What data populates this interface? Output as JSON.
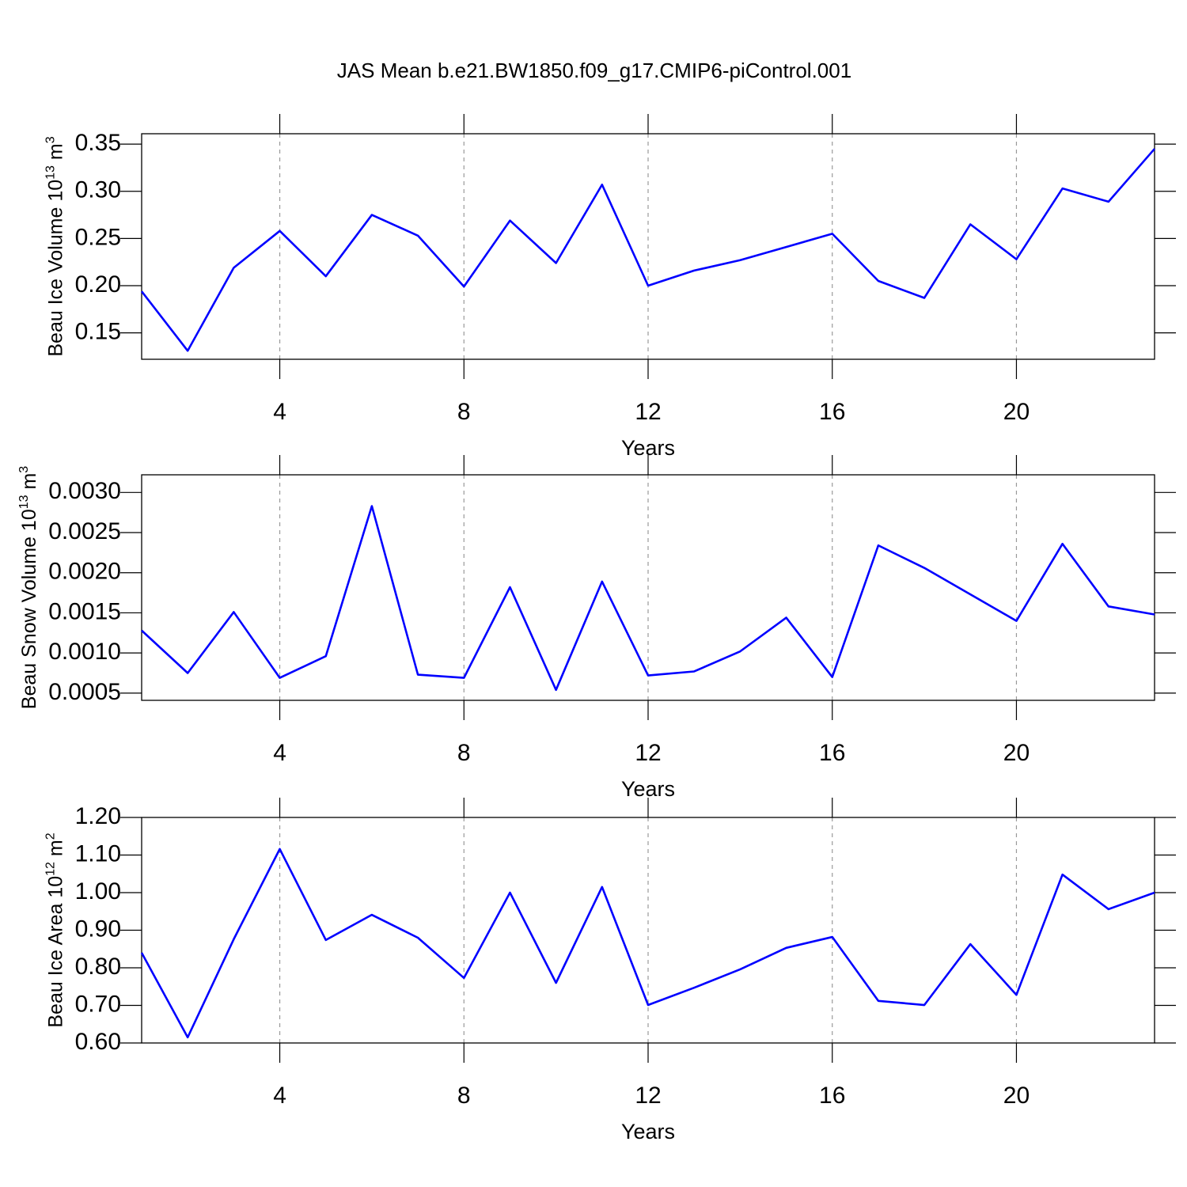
{
  "title": "JAS Mean b.e21.BW1850.f09_g17.CMIP6-piControl.001",
  "chart_data": [
    {
      "type": "line",
      "xlabel": "Years",
      "ylabel": {
        "text": "Beau Ice Volume 10",
        "exp": "13",
        "unit": " m",
        "unit_exp": "3"
      },
      "x": [
        1,
        2,
        3,
        4,
        5,
        6,
        7,
        8,
        9,
        10,
        11,
        12,
        13,
        14,
        15,
        16,
        17,
        18,
        19,
        20,
        21,
        22,
        23
      ],
      "xlim": [
        1,
        23
      ],
      "xticks": [
        4,
        8,
        12,
        16,
        20
      ],
      "grid": true,
      "ylim": [
        0.122,
        0.361
      ],
      "yticks": [
        {
          "value": 0.15,
          "label": "0.15"
        },
        {
          "value": 0.2,
          "label": "0.20"
        },
        0.25,
        {
          "value": 0.3,
          "label": "0.30"
        },
        0.35
      ],
      "series": [
        {
          "color": "#0000ff",
          "values": [
            0.194,
            0.131,
            0.219,
            0.258,
            0.21,
            0.275,
            0.253,
            0.199,
            0.269,
            0.224,
            0.307,
            0.2,
            0.216,
            0.227,
            0.241,
            0.255,
            0.205,
            0.187,
            0.265,
            0.228,
            0.303,
            0.289,
            0.345
          ]
        }
      ]
    },
    {
      "type": "line",
      "xlabel": "Years",
      "ylabel": {
        "text": "Beau Snow Volume 10",
        "exp": "13",
        "unit": " m",
        "unit_exp": "3"
      },
      "x": [
        1,
        2,
        3,
        4,
        5,
        6,
        7,
        8,
        9,
        10,
        11,
        12,
        13,
        14,
        15,
        16,
        17,
        18,
        19,
        20,
        21,
        22,
        23
      ],
      "xlim": [
        1,
        23
      ],
      "xticks": [
        4,
        8,
        12,
        16,
        20
      ],
      "grid": true,
      "ylim": [
        0.00041,
        0.00322
      ],
      "yticks": [
        0.0005,
        {
          "value": 0.001,
          "label": "0.0010"
        },
        0.0015,
        {
          "value": 0.002,
          "label": "0.0020"
        },
        0.0025,
        {
          "value": 0.003,
          "label": "0.0030"
        }
      ],
      "series": [
        {
          "color": "#0000ff",
          "values": [
            0.00128,
            0.00075,
            0.00151,
            0.00069,
            0.00096,
            0.00283,
            0.00073,
            0.00069,
            0.00182,
            0.00054,
            0.00189,
            0.00072,
            0.00077,
            0.00102,
            0.00144,
            0.0007,
            0.00234,
            0.00206,
            0.00173,
            0.0014,
            0.00236,
            0.00158,
            0.00148
          ]
        }
      ]
    },
    {
      "type": "line",
      "xlabel": "Years",
      "ylabel": {
        "text": "Beau Ice Area 10",
        "exp": "12",
        "unit": " m",
        "unit_exp": "2"
      },
      "x": [
        1,
        2,
        3,
        4,
        5,
        6,
        7,
        8,
        9,
        10,
        11,
        12,
        13,
        14,
        15,
        16,
        17,
        18,
        19,
        20,
        21,
        22,
        23
      ],
      "xlim": [
        1,
        23
      ],
      "xticks": [
        4,
        8,
        12,
        16,
        20
      ],
      "grid": true,
      "ylim": [
        0.6,
        1.2
      ],
      "yticks": [
        {
          "value": 0.6,
          "label": "0.60"
        },
        {
          "value": 0.7,
          "label": "0.70"
        },
        {
          "value": 0.8,
          "label": "0.80"
        },
        {
          "value": 0.9,
          "label": "0.90"
        },
        {
          "value": 1.0,
          "label": "1.00"
        },
        {
          "value": 1.1,
          "label": "1.10"
        },
        {
          "value": 1.2,
          "label": "1.20"
        }
      ],
      "series": [
        {
          "color": "#0000ff",
          "values": [
            0.84,
            0.615,
            0.876,
            1.116,
            0.874,
            0.941,
            0.88,
            0.773,
            1.0,
            0.76,
            1.015,
            0.701,
            0.747,
            0.796,
            0.853,
            0.882,
            0.712,
            0.701,
            0.863,
            0.728,
            1.048,
            0.956,
            1.0
          ]
        }
      ]
    }
  ]
}
